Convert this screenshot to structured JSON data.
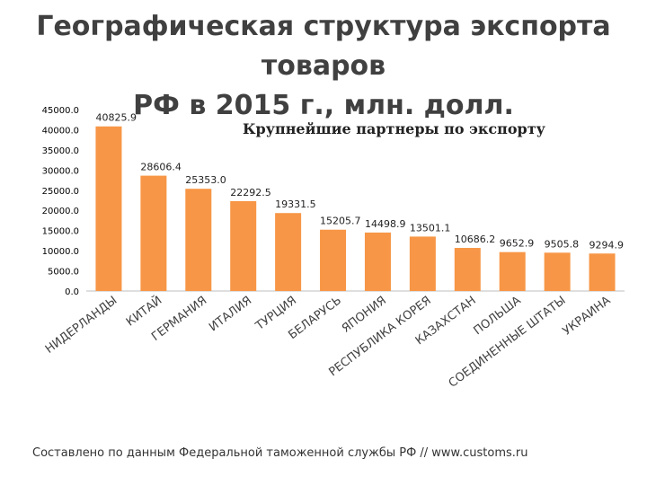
{
  "title_line1": "Географическая структура экспорта товаров",
  "title_line2": "РФ в 2015 г., млн. долл.",
  "source": "Составлено по данным Федеральной таможенной службы РФ // www.customs.ru",
  "chart_data": {
    "type": "bar",
    "subtitle": "Крупнейшие партнеры по экспорту",
    "categories": [
      "НИДЕРЛАНДЫ",
      "КИТАЙ",
      "ГЕРМАНИЯ",
      "ИТАЛИЯ",
      "ТУРЦИЯ",
      "БЕЛАРУСЬ",
      "ЯПОНИЯ",
      "РЕСПУБЛИКА КОРЕЯ",
      "КАЗАХСТАН",
      "ПОЛЬША",
      "СОЕДИНЕННЫЕ ШТАТЫ",
      "УКРАИНА"
    ],
    "values": [
      40825.9,
      28606.4,
      25353.0,
      22292.5,
      19331.5,
      15205.7,
      14498.9,
      13501.1,
      10686.2,
      9652.9,
      9505.8,
      9294.9
    ],
    "value_labels": [
      "40825.9",
      "28606.4",
      "25353.0",
      "22292.5",
      "19331.5",
      "15205.7",
      "14498.9",
      "13501.1",
      "10686.2",
      "9652.9",
      "9505.8",
      "9294.9"
    ],
    "yticks": [
      "0.0",
      "5000.0",
      "10000.0",
      "15000.0",
      "20000.0",
      "25000.0",
      "30000.0",
      "35000.0",
      "40000.0",
      "45000.0"
    ],
    "ylim": [
      0,
      45000
    ],
    "bar_color": "#F79646",
    "grid": false,
    "legend": "none"
  }
}
